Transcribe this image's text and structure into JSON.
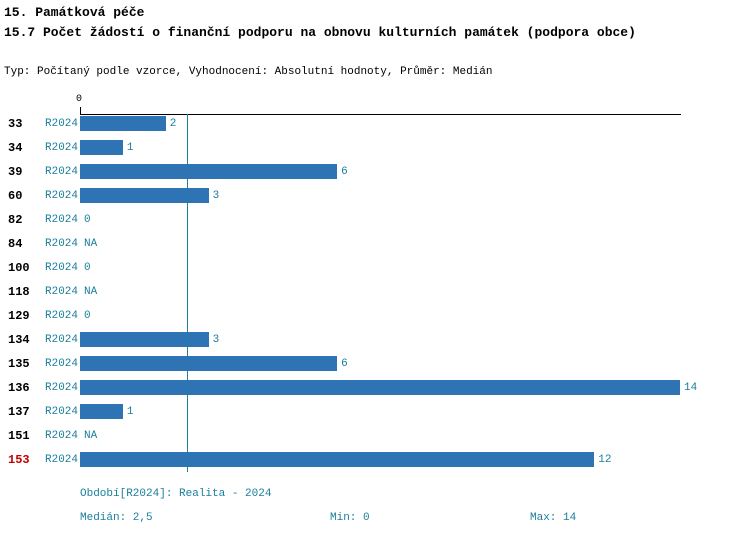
{
  "title_line1": "15. Památková péče",
  "title_line2": "15.7 Počet žádostí o finanční podporu na obnovu kulturních památek (podpora obce)",
  "subtitle": "Typ: Počítaný podle vzorce, Vyhodnocení: Absolutní hodnoty, Průměr: Medián",
  "colors": {
    "bar": "#2e74b5",
    "accent_text": "#1a7f9c",
    "highlight": "#c00000",
    "axis": "#000000"
  },
  "axis": {
    "zero_tick_label": "0"
  },
  "chart_data": {
    "type": "bar",
    "orientation": "horizontal",
    "title": "15.7 Počet žádostí o finanční podporu na obnovu kulturních památek (podpora obce)",
    "categories": [
      "33",
      "34",
      "39",
      "60",
      "82",
      "84",
      "100",
      "118",
      "129",
      "134",
      "135",
      "136",
      "137",
      "151",
      "153"
    ],
    "series_label": "R2024",
    "values": [
      2,
      1,
      6,
      3,
      0,
      null,
      0,
      null,
      0,
      3,
      6,
      14,
      1,
      null,
      12
    ],
    "value_labels": [
      "2",
      "1",
      "6",
      "3",
      "0",
      "NA",
      "0",
      "NA",
      "0",
      "3",
      "6",
      "14",
      "1",
      "NA",
      "12"
    ],
    "xlim": [
      0,
      14
    ],
    "median": 2.5,
    "highlight_category": "153",
    "grid": false,
    "legend": false
  },
  "footer": {
    "period": "Období[R2024]: Realita - 2024",
    "median": "Medián: 2,5",
    "min": "Min: 0",
    "max": "Max: 14"
  }
}
